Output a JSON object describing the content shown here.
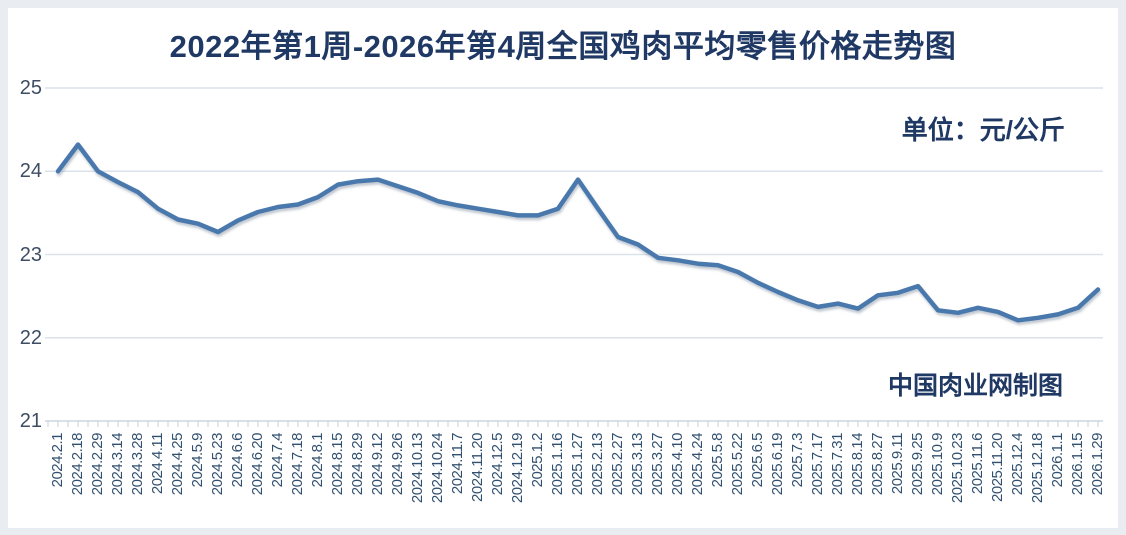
{
  "colors": {
    "page_background": "#e9edf2",
    "card_background": "#ffffff",
    "title": "#1f3864",
    "line": "#4a78ad",
    "line_shadow": "#8b99a9",
    "gridline": "#dae2ea",
    "axis_line": "#cdd6e0",
    "tick": "#c5d0da",
    "y_label": "#3d4d63",
    "x_label": "#31506f"
  },
  "chart_data": {
    "type": "line",
    "title": "2022年第1周-2026年第4周全国鸡肉平均零售价格走势图",
    "unit_label": "单位：元/公斤",
    "credit": "中国肉业网制图",
    "ylim": [
      21,
      25
    ],
    "yticks": [
      25,
      24,
      23,
      22,
      21
    ],
    "grid": true,
    "legend": "none",
    "categories": [
      "2024.2.1",
      "2024.2.18",
      "2024.2.29",
      "2024.3.14",
      "2024.3.28",
      "2024.4.11",
      "2024.4.25",
      "2024.5.9",
      "2024.5.23",
      "2024.6.6",
      "2024.6.20",
      "2024.7.4",
      "2024.7.18",
      "2024.8.1",
      "2024.8.15",
      "2024.8.29",
      "2024.9.12",
      "2024.9.26",
      "2024.10.13",
      "2024.10.24",
      "2024.11.7",
      "2024.11.20",
      "2024.12.5",
      "2024.12.19",
      "2025.1.2",
      "2025.1.16",
      "2025.1.27",
      "2025.2.13",
      "2025.2.27",
      "2025.3.13",
      "2025.3.27",
      "2025.4.10",
      "2025.4.24",
      "2025.5.8",
      "2025.5.22",
      "2025.6.5",
      "2025.6.19",
      "2025.7.3",
      "2025.7.17",
      "2025.7.31",
      "2025.8.14",
      "2025.8.27",
      "2025.9.11",
      "2025.9.25",
      "2025.10.9",
      "2025.10.23",
      "2025.11.6",
      "2025.11.20",
      "2025.12.4",
      "2025.12.18",
      "2026.1.1",
      "2026.1.15",
      "2026.1.29"
    ],
    "values": [
      24.0,
      24.32,
      24.0,
      23.87,
      23.75,
      23.55,
      23.42,
      23.37,
      23.27,
      23.41,
      23.51,
      23.57,
      23.6,
      23.69,
      23.84,
      23.88,
      23.9,
      23.82,
      23.74,
      23.64,
      23.59,
      23.55,
      23.51,
      23.47,
      23.47,
      23.55,
      23.9,
      23.55,
      23.21,
      23.12,
      22.96,
      22.93,
      22.89,
      22.87,
      22.79,
      22.66,
      22.55,
      22.45,
      22.37,
      22.41,
      22.35,
      22.51,
      22.54,
      22.62,
      22.33,
      22.3,
      22.36,
      22.31,
      22.21,
      22.24,
      22.28,
      22.36,
      22.58
    ]
  }
}
